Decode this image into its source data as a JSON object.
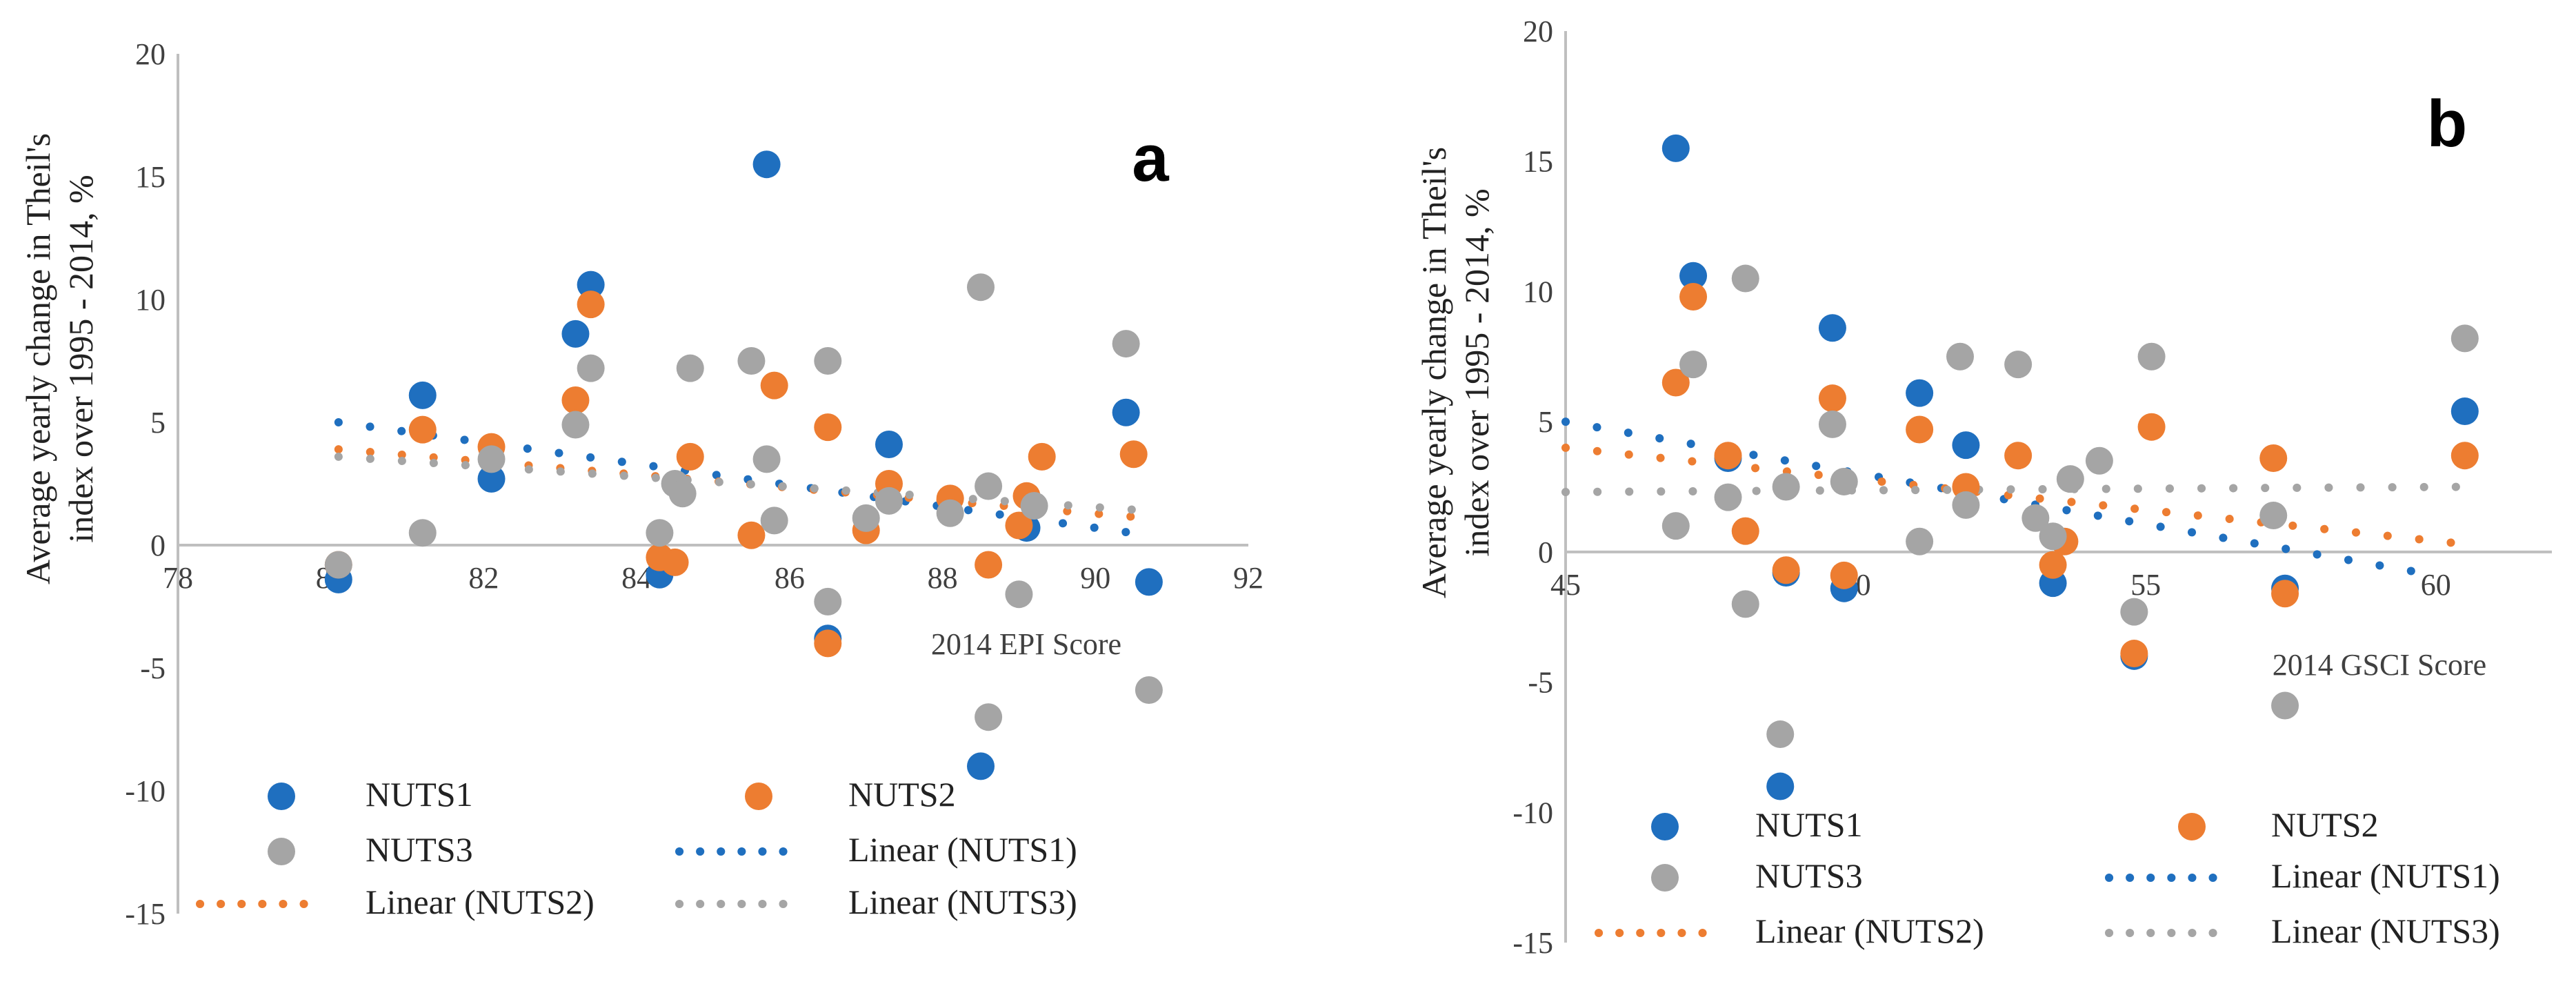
{
  "chart_data": [
    {
      "type": "scatter",
      "panel_label": "a",
      "xlabel": "2014 EPI Score",
      "ylabel": "Average yearly change in Theil's index over 1995 - 2014, %",
      "xlim": [
        78,
        92
      ],
      "ylim": [
        -15,
        20
      ],
      "x_ticks": [
        78,
        80,
        82,
        84,
        86,
        88,
        90,
        92
      ],
      "x_tick_labels": [
        "78",
        "80",
        "82",
        "84",
        "86",
        "88",
        "90",
        "92"
      ],
      "y_ticks": [
        -15,
        -10,
        -5,
        0,
        5,
        10,
        15,
        20
      ],
      "y_tick_labels": [
        "-15",
        "-10",
        "-5",
        "0",
        "5",
        "10",
        "15",
        "20"
      ],
      "series": [
        {
          "name": "NUTS1",
          "color": "#1F6FBF",
          "points": [
            [
              80.1,
              -1.4
            ],
            [
              81.2,
              6.1
            ],
            [
              82.1,
              2.7
            ],
            [
              83.2,
              8.6
            ],
            [
              83.4,
              10.6
            ],
            [
              84.3,
              -1.2
            ],
            [
              85.7,
              15.5
            ],
            [
              86.5,
              -3.8
            ],
            [
              87.3,
              4.1
            ],
            [
              88.5,
              -9.0
            ],
            [
              89.1,
              0.7
            ],
            [
              90.4,
              5.4
            ],
            [
              90.7,
              -1.5
            ]
          ]
        },
        {
          "name": "NUTS2",
          "color": "#ED7D31",
          "points": [
            [
              80.1,
              -0.8
            ],
            [
              81.2,
              4.7
            ],
            [
              82.1,
              4.0
            ],
            [
              83.2,
              5.9
            ],
            [
              83.4,
              9.8
            ],
            [
              84.3,
              -0.5
            ],
            [
              84.5,
              -0.7
            ],
            [
              84.7,
              3.6
            ],
            [
              85.5,
              0.4
            ],
            [
              85.8,
              6.5
            ],
            [
              86.5,
              4.8
            ],
            [
              86.5,
              -4.0
            ],
            [
              87.0,
              0.6
            ],
            [
              87.3,
              2.5
            ],
            [
              88.1,
              1.9
            ],
            [
              88.6,
              -0.8
            ],
            [
              89.0,
              0.8
            ],
            [
              89.1,
              2.0
            ],
            [
              89.3,
              3.6
            ],
            [
              90.5,
              3.7
            ]
          ]
        },
        {
          "name": "NUTS3",
          "color": "#A5A5A5",
          "points": [
            [
              80.1,
              -0.8
            ],
            [
              81.2,
              0.5
            ],
            [
              82.1,
              3.5
            ],
            [
              83.2,
              4.9
            ],
            [
              83.4,
              7.2
            ],
            [
              84.3,
              0.5
            ],
            [
              84.5,
              2.5
            ],
            [
              84.6,
              2.1
            ],
            [
              84.7,
              7.2
            ],
            [
              85.5,
              7.5
            ],
            [
              85.7,
              3.5
            ],
            [
              85.8,
              1.0
            ],
            [
              86.5,
              7.5
            ],
            [
              86.5,
              -2.3
            ],
            [
              87.0,
              1.1
            ],
            [
              87.3,
              1.8
            ],
            [
              88.1,
              1.3
            ],
            [
              88.5,
              10.5
            ],
            [
              88.6,
              2.4
            ],
            [
              88.6,
              -7.0
            ],
            [
              89.0,
              -2.0
            ],
            [
              89.2,
              1.6
            ],
            [
              90.4,
              8.2
            ],
            [
              90.7,
              -5.9
            ]
          ]
        }
      ],
      "trendlines": [
        {
          "name": "Linear (NUTS1)",
          "color": "#1F6FBF",
          "from": [
            80.1,
            5.0
          ],
          "to": [
            90.7,
            0.4
          ]
        },
        {
          "name": "Linear (NUTS2)",
          "color": "#ED7D31",
          "from": [
            80.1,
            3.9
          ],
          "to": [
            90.7,
            1.1
          ]
        },
        {
          "name": "Linear (NUTS3)",
          "color": "#A5A5A5",
          "from": [
            80.1,
            3.6
          ],
          "to": [
            90.7,
            1.4
          ]
        }
      ],
      "legend": [
        {
          "label": "NUTS1",
          "kind": "marker",
          "color": "#1F6FBF"
        },
        {
          "label": "NUTS2",
          "kind": "marker",
          "color": "#ED7D31"
        },
        {
          "label": "NUTS3",
          "kind": "marker",
          "color": "#A5A5A5"
        },
        {
          "label": "Linear (NUTS1)",
          "kind": "line",
          "color": "#1F6FBF"
        },
        {
          "label": "Linear (NUTS2)",
          "kind": "line",
          "color": "#ED7D31"
        },
        {
          "label": "Linear (NUTS3)",
          "kind": "line",
          "color": "#A5A5A5"
        }
      ],
      "legend_position": "bottom"
    },
    {
      "type": "scatter",
      "panel_label": "b",
      "xlabel": "2014 GSCI Score",
      "ylabel": "Average yearly change in Theil's index over 1995 - 2014, %",
      "xlim": [
        45,
        62
      ],
      "ylim": [
        -15,
        20
      ],
      "x_ticks": [
        45,
        50,
        55,
        60
      ],
      "x_tick_labels": [
        "45",
        "50",
        "55",
        "60"
      ],
      "y_ticks": [
        -15,
        -10,
        -5,
        0,
        5,
        10,
        15,
        20
      ],
      "y_tick_labels": [
        "-15",
        "-10",
        "-5",
        "0",
        "5",
        "10",
        "15",
        "20"
      ],
      "series": [
        {
          "name": "NUTS1",
          "color": "#1F6FBF",
          "points": [
            [
              46.9,
              15.5
            ],
            [
              47.2,
              10.6
            ],
            [
              47.8,
              3.6
            ],
            [
              48.7,
              -9.0
            ],
            [
              48.8,
              -0.8
            ],
            [
              49.6,
              8.6
            ],
            [
              49.8,
              -1.4
            ],
            [
              51.1,
              6.1
            ],
            [
              51.9,
              4.1
            ],
            [
              53.4,
              -1.2
            ],
            [
              54.8,
              -4.0
            ],
            [
              57.4,
              -1.4
            ],
            [
              60.5,
              5.4
            ]
          ]
        },
        {
          "name": "NUTS2",
          "color": "#ED7D31",
          "points": [
            [
              46.9,
              6.5
            ],
            [
              47.2,
              9.8
            ],
            [
              47.8,
              3.7
            ],
            [
              48.1,
              0.8
            ],
            [
              48.8,
              -0.7
            ],
            [
              49.6,
              5.9
            ],
            [
              49.8,
              -0.9
            ],
            [
              51.1,
              4.7
            ],
            [
              51.9,
              2.5
            ],
            [
              52.8,
              3.7
            ],
            [
              53.4,
              -0.5
            ],
            [
              53.6,
              0.4
            ],
            [
              54.8,
              -3.9
            ],
            [
              55.1,
              4.8
            ],
            [
              57.2,
              3.6
            ],
            [
              57.4,
              -1.6
            ],
            [
              60.5,
              3.7
            ]
          ]
        },
        {
          "name": "NUTS3",
          "color": "#A5A5A5",
          "points": [
            [
              46.9,
              1.0
            ],
            [
              47.2,
              7.2
            ],
            [
              47.8,
              2.1
            ],
            [
              48.1,
              10.5
            ],
            [
              48.1,
              -2.0
            ],
            [
              48.7,
              -7.0
            ],
            [
              48.8,
              2.5
            ],
            [
              49.6,
              4.9
            ],
            [
              49.8,
              2.7
            ],
            [
              51.1,
              0.4
            ],
            [
              51.8,
              7.5
            ],
            [
              51.9,
              1.8
            ],
            [
              52.8,
              7.2
            ],
            [
              53.1,
              1.3
            ],
            [
              53.4,
              0.6
            ],
            [
              53.7,
              2.8
            ],
            [
              54.2,
              3.5
            ],
            [
              54.8,
              -2.3
            ],
            [
              55.1,
              7.5
            ],
            [
              57.2,
              1.4
            ],
            [
              57.4,
              -5.9
            ],
            [
              60.5,
              8.2
            ]
          ]
        }
      ],
      "trendlines": [
        {
          "name": "Linear (NUTS1)",
          "color": "#1F6FBF",
          "from": [
            45.0,
            5.0
          ],
          "to": [
            60.0,
            -0.9
          ]
        },
        {
          "name": "Linear (NUTS2)",
          "color": "#ED7D31",
          "from": [
            45.0,
            4.0
          ],
          "to": [
            60.5,
            0.3
          ]
        },
        {
          "name": "Linear (NUTS3)",
          "color": "#A5A5A5",
          "from": [
            45.0,
            2.3
          ],
          "to": [
            60.5,
            2.5
          ]
        }
      ],
      "legend": [
        {
          "label": "NUTS1",
          "kind": "marker",
          "color": "#1F6FBF"
        },
        {
          "label": "NUTS2",
          "kind": "marker",
          "color": "#ED7D31"
        },
        {
          "label": "NUTS3",
          "kind": "marker",
          "color": "#A5A5A5"
        },
        {
          "label": "Linear (NUTS1)",
          "kind": "line",
          "color": "#1F6FBF"
        },
        {
          "label": "Linear (NUTS2)",
          "kind": "line",
          "color": "#ED7D31"
        },
        {
          "label": "Linear (NUTS3)",
          "kind": "line",
          "color": "#A5A5A5"
        }
      ],
      "legend_position": "bottom"
    }
  ]
}
